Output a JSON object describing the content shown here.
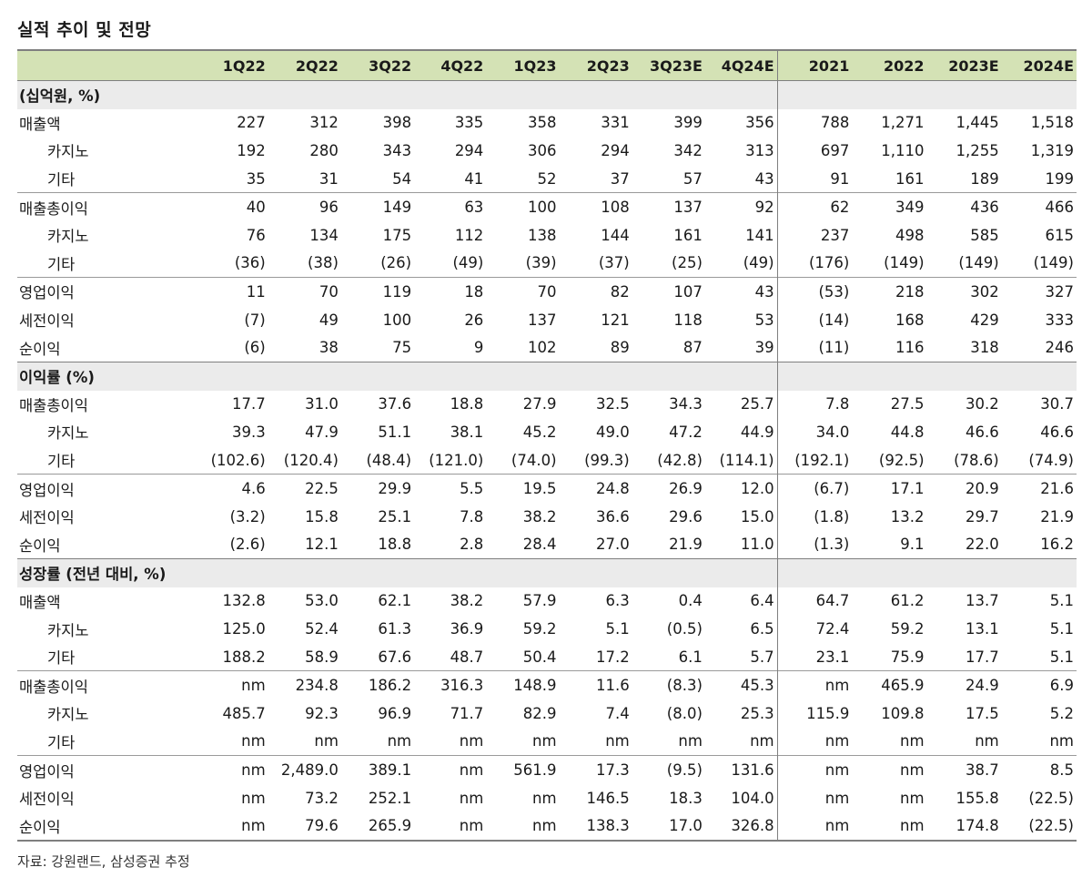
{
  "title": "실적 추이 및 전망",
  "source": "자료: 강원랜드, 삼성증권 추정",
  "columns": [
    "1Q22",
    "2Q22",
    "3Q22",
    "4Q22",
    "1Q23",
    "2Q23",
    "3Q23E",
    "4Q24E",
    "2021",
    "2022",
    "2023E",
    "2024E"
  ],
  "sections": [
    {
      "header": "(십억원, %)",
      "groups": [
        {
          "rows": [
            {
              "label": "매출액",
              "indent": false,
              "values": [
                "227",
                "312",
                "398",
                "335",
                "358",
                "331",
                "399",
                "356",
                "788",
                "1,271",
                "1,445",
                "1,518"
              ]
            },
            {
              "label": "카지노",
              "indent": true,
              "values": [
                "192",
                "280",
                "343",
                "294",
                "306",
                "294",
                "342",
                "313",
                "697",
                "1,110",
                "1,255",
                "1,319"
              ]
            },
            {
              "label": "기타",
              "indent": true,
              "values": [
                "35",
                "31",
                "54",
                "41",
                "52",
                "37",
                "57",
                "43",
                "91",
                "161",
                "189",
                "199"
              ]
            }
          ]
        },
        {
          "rows": [
            {
              "label": "매출총이익",
              "indent": false,
              "values": [
                "40",
                "96",
                "149",
                "63",
                "100",
                "108",
                "137",
                "92",
                "62",
                "349",
                "436",
                "466"
              ]
            },
            {
              "label": "카지노",
              "indent": true,
              "values": [
                "76",
                "134",
                "175",
                "112",
                "138",
                "144",
                "161",
                "141",
                "237",
                "498",
                "585",
                "615"
              ]
            },
            {
              "label": "기타",
              "indent": true,
              "values": [
                "(36)",
                "(38)",
                "(26)",
                "(49)",
                "(39)",
                "(37)",
                "(25)",
                "(49)",
                "(176)",
                "(149)",
                "(149)",
                "(149)"
              ]
            }
          ]
        },
        {
          "rows": [
            {
              "label": "영업이익",
              "indent": false,
              "values": [
                "11",
                "70",
                "119",
                "18",
                "70",
                "82",
                "107",
                "43",
                "(53)",
                "218",
                "302",
                "327"
              ]
            },
            {
              "label": "세전이익",
              "indent": false,
              "values": [
                "(7)",
                "49",
                "100",
                "26",
                "137",
                "121",
                "118",
                "53",
                "(14)",
                "168",
                "429",
                "333"
              ]
            },
            {
              "label": "순이익",
              "indent": false,
              "values": [
                "(6)",
                "38",
                "75",
                "9",
                "102",
                "89",
                "87",
                "39",
                "(11)",
                "116",
                "318",
                "246"
              ]
            }
          ]
        }
      ]
    },
    {
      "header": "이익률 (%)",
      "groups": [
        {
          "rows": [
            {
              "label": "매출총이익",
              "indent": false,
              "values": [
                "17.7",
                "31.0",
                "37.6",
                "18.8",
                "27.9",
                "32.5",
                "34.3",
                "25.7",
                "7.8",
                "27.5",
                "30.2",
                "30.7"
              ]
            },
            {
              "label": "카지노",
              "indent": true,
              "values": [
                "39.3",
                "47.9",
                "51.1",
                "38.1",
                "45.2",
                "49.0",
                "47.2",
                "44.9",
                "34.0",
                "44.8",
                "46.6",
                "46.6"
              ]
            },
            {
              "label": "기타",
              "indent": true,
              "values": [
                "(102.6)",
                "(120.4)",
                "(48.4)",
                "(121.0)",
                "(74.0)",
                "(99.3)",
                "(42.8)",
                "(114.1)",
                "(192.1)",
                "(92.5)",
                "(78.6)",
                "(74.9)"
              ]
            }
          ]
        },
        {
          "rows": [
            {
              "label": "영업이익",
              "indent": false,
              "values": [
                "4.6",
                "22.5",
                "29.9",
                "5.5",
                "19.5",
                "24.8",
                "26.9",
                "12.0",
                "(6.7)",
                "17.1",
                "20.9",
                "21.6"
              ]
            },
            {
              "label": "세전이익",
              "indent": false,
              "values": [
                "(3.2)",
                "15.8",
                "25.1",
                "7.8",
                "38.2",
                "36.6",
                "29.6",
                "15.0",
                "(1.8)",
                "13.2",
                "29.7",
                "21.9"
              ]
            },
            {
              "label": "순이익",
              "indent": false,
              "values": [
                "(2.6)",
                "12.1",
                "18.8",
                "2.8",
                "28.4",
                "27.0",
                "21.9",
                "11.0",
                "(1.3)",
                "9.1",
                "22.0",
                "16.2"
              ]
            }
          ]
        }
      ]
    },
    {
      "header": "성장률 (전년 대비, %)",
      "groups": [
        {
          "rows": [
            {
              "label": "매출액",
              "indent": false,
              "values": [
                "132.8",
                "53.0",
                "62.1",
                "38.2",
                "57.9",
                "6.3",
                "0.4",
                "6.4",
                "64.7",
                "61.2",
                "13.7",
                "5.1"
              ]
            },
            {
              "label": "카지노",
              "indent": true,
              "values": [
                "125.0",
                "52.4",
                "61.3",
                "36.9",
                "59.2",
                "5.1",
                "(0.5)",
                "6.5",
                "72.4",
                "59.2",
                "13.1",
                "5.1"
              ]
            },
            {
              "label": "기타",
              "indent": true,
              "values": [
                "188.2",
                "58.9",
                "67.6",
                "48.7",
                "50.4",
                "17.2",
                "6.1",
                "5.7",
                "23.1",
                "75.9",
                "17.7",
                "5.1"
              ]
            }
          ]
        },
        {
          "rows": [
            {
              "label": "매출총이익",
              "indent": false,
              "values": [
                "nm",
                "234.8",
                "186.2",
                "316.3",
                "148.9",
                "11.6",
                "(8.3)",
                "45.3",
                "nm",
                "465.9",
                "24.9",
                "6.9"
              ]
            },
            {
              "label": "카지노",
              "indent": true,
              "values": [
                "485.7",
                "92.3",
                "96.9",
                "71.7",
                "82.9",
                "7.4",
                "(8.0)",
                "25.3",
                "115.9",
                "109.8",
                "17.5",
                "5.2"
              ]
            },
            {
              "label": "기타",
              "indent": true,
              "values": [
                "nm",
                "nm",
                "nm",
                "nm",
                "nm",
                "nm",
                "nm",
                "nm",
                "nm",
                "nm",
                "nm",
                "nm"
              ]
            }
          ]
        },
        {
          "rows": [
            {
              "label": "영업이익",
              "indent": false,
              "values": [
                "nm",
                "2,489.0",
                "389.1",
                "nm",
                "561.9",
                "17.3",
                "(9.5)",
                "131.6",
                "nm",
                "nm",
                "38.7",
                "8.5"
              ]
            },
            {
              "label": "세전이익",
              "indent": false,
              "values": [
                "nm",
                "73.2",
                "252.1",
                "nm",
                "nm",
                "146.5",
                "18.3",
                "104.0",
                "nm",
                "nm",
                "155.8",
                "(22.5)"
              ]
            },
            {
              "label": "순이익",
              "indent": false,
              "values": [
                "nm",
                "79.6",
                "265.9",
                "nm",
                "nm",
                "138.3",
                "17.0",
                "326.8",
                "nm",
                "nm",
                "174.8",
                "(22.5)"
              ]
            }
          ]
        }
      ]
    }
  ]
}
